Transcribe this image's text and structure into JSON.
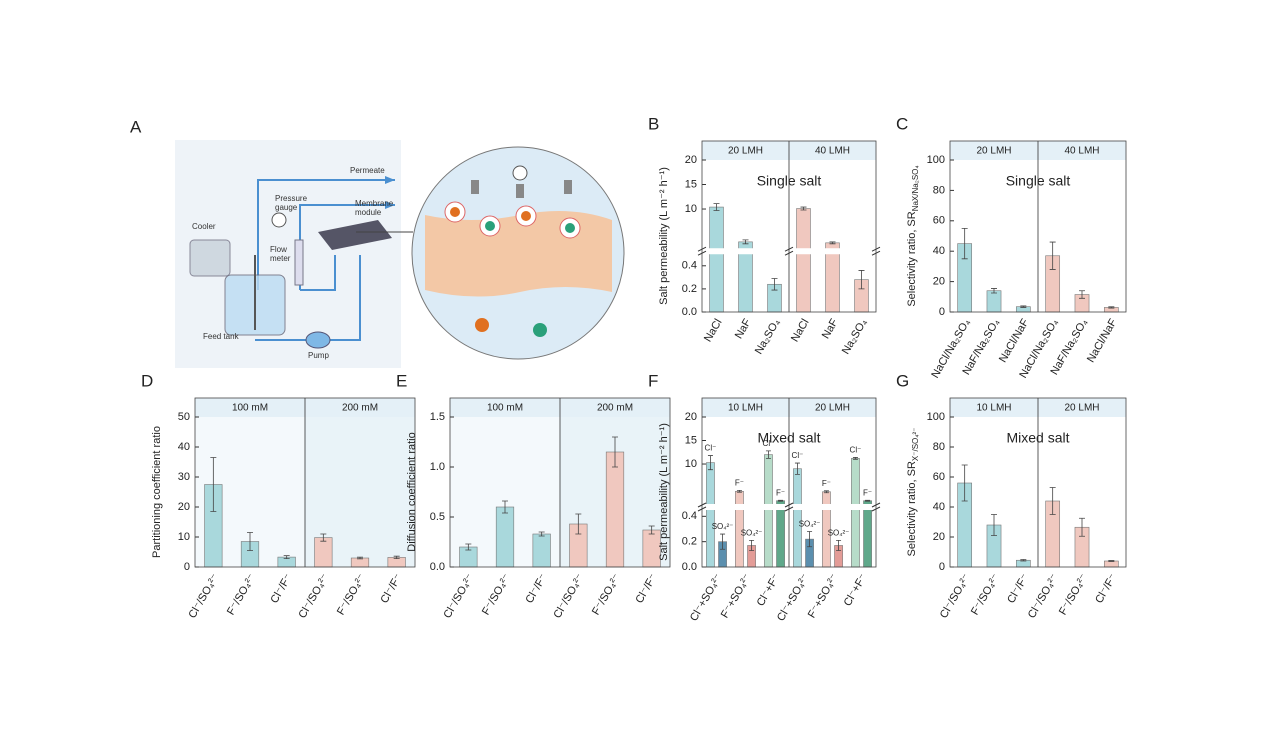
{
  "diagram": {
    "panel": "A",
    "permeate": "Permeate",
    "pressure": "Pressure",
    "gauge": "gauge",
    "membrane": "Membrane",
    "module": "module",
    "cooler": "Cooler",
    "flow": "Flow",
    "meter": "meter",
    "feed_tank": "Feed tank",
    "pump": "Pump"
  },
  "chart_data": [
    {
      "type": "bar",
      "panel": "B",
      "sections": [
        "20 LMH",
        "40 LMH"
      ],
      "annotation": "Single salt",
      "ylabel": "Salt permeability (L m⁻² h⁻¹)",
      "categories": [
        "NaCl",
        "NaF",
        "Na₂SO₄",
        "NaCl",
        "NaF",
        "Na₂SO₄"
      ],
      "values": [
        10.4,
        3.3,
        0.24,
        10.1,
        3.1,
        0.28
      ],
      "errors": [
        0.7,
        0.4,
        0.05,
        0.3,
        0.2,
        0.08
      ],
      "colors": [
        "#a9d8dc",
        "#a9d8dc",
        "#a9d8dc",
        "#f0c8bf",
        "#f0c8bf",
        "#f0c8bf"
      ],
      "ylim": [
        0,
        20
      ],
      "ybreak": [
        0.5,
        2
      ],
      "yticks": [
        {
          "value": 0,
          "label": "0.0"
        },
        {
          "value": 0.2,
          "label": "0.2"
        },
        {
          "value": 0.4,
          "label": "0.4"
        },
        10,
        15,
        20
      ]
    },
    {
      "type": "bar",
      "panel": "C",
      "sections": [
        "20 LMH",
        "40 LMH"
      ],
      "annotation": "Single salt",
      "ylabel": "Selectivity ratio, SR",
      "ylabel_sub": "NaX/Na₂SO₄",
      "categories": [
        "NaCl/Na₂SO₄",
        "NaF/Na₂SO₄",
        "NaCl/NaF",
        "NaCl/Na₂SO₄",
        "NaF/Na₂SO₄",
        "NaCl/NaF"
      ],
      "values": [
        45,
        14,
        3.5,
        37,
        11.5,
        3
      ],
      "errors": [
        10,
        1.5,
        0.5,
        9,
        2.5,
        0.4
      ],
      "colors": [
        "#a9d8dc",
        "#a9d8dc",
        "#a9d8dc",
        "#f0c8bf",
        "#f0c8bf",
        "#f0c8bf"
      ],
      "ylim": [
        0,
        100
      ],
      "yticks": [
        0,
        20,
        40,
        60,
        80,
        100
      ]
    },
    {
      "type": "bar",
      "panel": "D",
      "sections": [
        "100 mM",
        "200 mM"
      ],
      "ylabel": "Partitioning coefficient ratio",
      "categories": [
        "Cl⁻/SO₄²⁻",
        "F⁻/SO₄²⁻",
        "Cl⁻/F⁻",
        "Cl⁻/SO₄²⁻",
        "F⁻/SO₄²⁻",
        "Cl⁻/F⁻"
      ],
      "values": [
        27.5,
        8.5,
        3.3,
        9.8,
        3,
        3.2
      ],
      "errors": [
        9,
        3,
        0.5,
        1.2,
        0.3,
        0.4
      ],
      "colors": [
        "#a9d8dc",
        "#a9d8dc",
        "#a9d8dc",
        "#f0c8bf",
        "#f0c8bf",
        "#f0c8bf"
      ],
      "ylim": [
        0,
        50
      ],
      "yticks": [
        0,
        10,
        20,
        30,
        40,
        50
      ]
    },
    {
      "type": "bar",
      "panel": "E",
      "sections": [
        "100 mM",
        "200 mM"
      ],
      "ylabel": "Diffusion coefficient ratio",
      "categories": [
        "Cl⁻/SO₄²⁻",
        "F⁻/SO₄²⁻",
        "Cl⁻/F⁻",
        "Cl⁻/SO₄²⁻",
        "F⁻/SO₄²⁻",
        "Cl⁻/F⁻"
      ],
      "values": [
        0.2,
        0.6,
        0.33,
        0.43,
        1.15,
        0.37
      ],
      "errors": [
        0.03,
        0.06,
        0.02,
        0.1,
        0.15,
        0.04
      ],
      "colors": [
        "#a9d8dc",
        "#a9d8dc",
        "#a9d8dc",
        "#f0c8bf",
        "#f0c8bf",
        "#f0c8bf"
      ],
      "ylim": [
        0,
        1.5
      ],
      "yticks": [
        {
          "value": 0,
          "label": "0.0"
        },
        {
          "value": 0.5,
          "label": "0.5"
        },
        {
          "value": 1,
          "label": "1.0"
        },
        {
          "value": 1.5,
          "label": "1.5"
        }
      ]
    },
    {
      "type": "grouped-bar",
      "panel": "F",
      "sections": [
        "10 LMH",
        "20 LMH"
      ],
      "annotation": "Mixed salt",
      "ylabel": "Salt permeability (L m⁻² h⁻¹)",
      "categories": [
        "Cl⁻+SO₄²⁻",
        "F⁻+SO₄²⁻",
        "Cl⁻+F⁻",
        "Cl⁻+SO₄²⁻",
        "F⁻+SO₄²⁻",
        "Cl⁻+F⁻"
      ],
      "values": [
        [
          10.3,
          0.2
        ],
        [
          4.2,
          0.17
        ],
        [
          12,
          2.2
        ],
        [
          9,
          0.22
        ],
        [
          4.1,
          0.17
        ],
        [
          11.2,
          2.2
        ]
      ],
      "errors": [
        [
          1.5,
          0.06
        ],
        [
          0.2,
          0.04
        ],
        [
          0.8,
          0.1
        ],
        [
          1.2,
          0.06
        ],
        [
          0.2,
          0.04
        ],
        [
          0.2,
          0.1
        ]
      ],
      "bar_labels": [
        [
          "Cl⁻",
          "SO₄²⁻"
        ],
        [
          "F⁻",
          "SO₄²⁻"
        ],
        [
          "Cl⁻",
          "F⁻"
        ],
        [
          "Cl⁻",
          "SO₄²⁻"
        ],
        [
          "F⁻",
          "SO₄²⁻"
        ],
        [
          "Cl⁻",
          "F⁻"
        ]
      ],
      "colors": [
        [
          "#a9d8dc",
          "#5b8fae"
        ],
        [
          "#f0c8bf",
          "#e39c97"
        ],
        [
          "#b7dcc9",
          "#5fa88a"
        ],
        [
          "#a9d8dc",
          "#5b8fae"
        ],
        [
          "#f0c8bf",
          "#e39c97"
        ],
        [
          "#b7dcc9",
          "#5fa88a"
        ]
      ],
      "ylim": [
        0,
        20
      ],
      "ybreak": [
        0.45,
        1.5
      ],
      "yticks": [
        {
          "value": 0,
          "label": "0.0"
        },
        {
          "value": 0.2,
          "label": "0.2"
        },
        {
          "value": 0.4,
          "label": "0.4"
        },
        10,
        15,
        20
      ]
    },
    {
      "type": "bar",
      "panel": "G",
      "sections": [
        "10 LMH",
        "20 LMH"
      ],
      "annotation": "Mixed salt",
      "ylabel": "Selectivity ratio, SR",
      "ylabel_sub": "X⁻/SO₄²⁻",
      "categories": [
        "Cl⁻/SO₄²⁻",
        "F⁻/SO₄²⁻",
        "Cl⁻/F⁻",
        "Cl⁻/SO₄²⁻",
        "F⁻/SO₄²⁻",
        "Cl⁻/F⁻"
      ],
      "values": [
        56,
        28,
        4.5,
        44,
        26.5,
        4
      ],
      "errors": [
        12,
        7,
        0.5,
        9,
        6,
        0.3
      ],
      "colors": [
        "#a9d8dc",
        "#a9d8dc",
        "#a9d8dc",
        "#f0c8bf",
        "#f0c8bf",
        "#f0c8bf"
      ],
      "ylim": [
        0,
        100
      ],
      "yticks": [
        0,
        20,
        40,
        60,
        80,
        100
      ]
    }
  ]
}
